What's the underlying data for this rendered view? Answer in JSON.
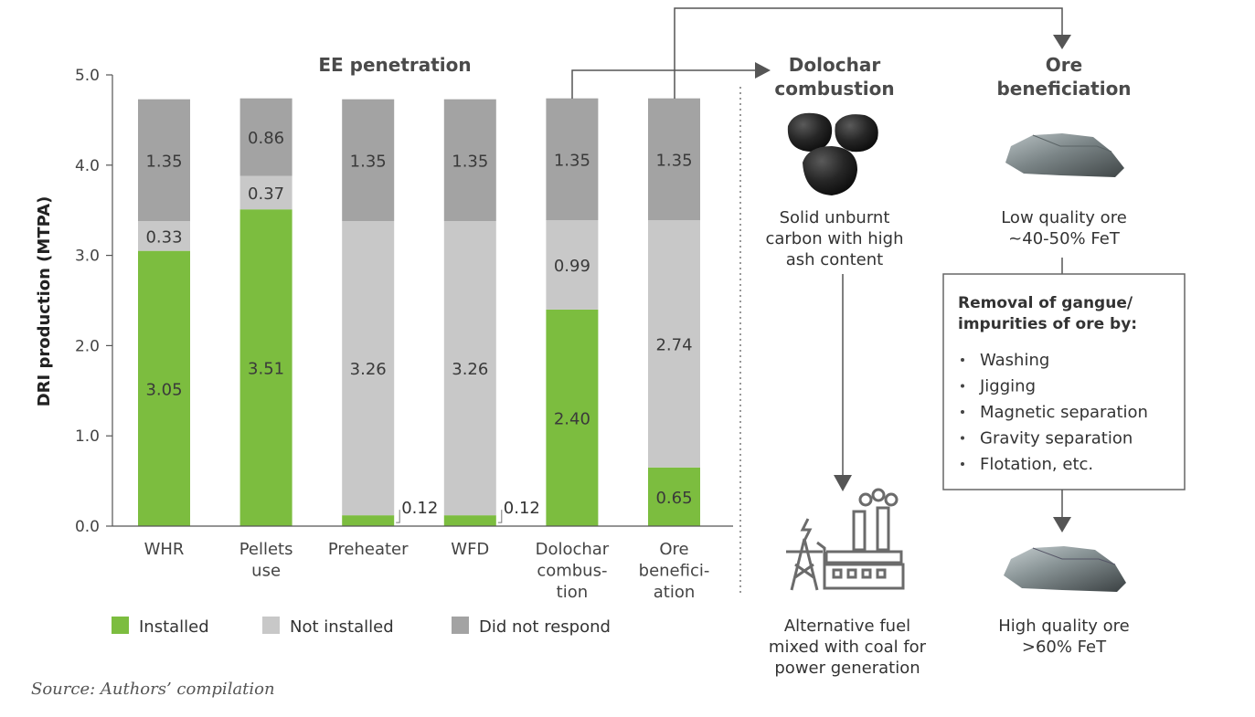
{
  "chart_data": {
    "type": "bar",
    "stacked": true,
    "title": "EE penetration",
    "ylabel": "DRI production (MTPA)",
    "xlabel": "",
    "ylim": [
      0,
      5
    ],
    "yticks": [
      "0.0",
      "1.0",
      "2.0",
      "3.0",
      "4.0",
      "5.0"
    ],
    "grid": false,
    "legend_position": "bottom",
    "categories": [
      [
        "WHR"
      ],
      [
        "Pellets",
        "use"
      ],
      [
        "Preheater"
      ],
      [
        "WFD"
      ],
      [
        "Dolochar",
        "combus-",
        "tion"
      ],
      [
        "Ore",
        "benefici-",
        "ation"
      ]
    ],
    "series": [
      {
        "name": "Installed",
        "color": "#7cbd3f",
        "values": [
          3.05,
          3.51,
          0.12,
          0.12,
          2.4,
          0.65
        ],
        "labels": [
          "3.05",
          "3.51",
          "0.12",
          "0.12",
          "2.40",
          "0.65"
        ]
      },
      {
        "name": "Not installed",
        "color": "#c8c8c8",
        "values": [
          0.33,
          0.37,
          3.26,
          3.26,
          0.99,
          2.74
        ],
        "labels": [
          "0.33",
          "0.37",
          "3.26",
          "3.26",
          "0.99",
          "2.74"
        ]
      },
      {
        "name": "Did not respond",
        "color": "#a3a3a3",
        "values": [
          1.35,
          0.86,
          1.35,
          1.35,
          1.35,
          1.35
        ],
        "labels": [
          "1.35",
          "0.86",
          "1.35",
          "1.35",
          "1.35",
          "1.35"
        ]
      }
    ]
  },
  "diagram": {
    "dolochar": {
      "title": [
        "Dolochar",
        "combustion"
      ],
      "description": [
        "Solid unburnt",
        "carbon with high",
        "ash content"
      ],
      "output": [
        "Alternative fuel",
        "mixed with coal for",
        "power generation"
      ]
    },
    "ore": {
      "title": [
        "Ore",
        "beneficiation"
      ],
      "input": [
        "Low quality ore",
        "~40-50% FeT"
      ],
      "process_heading": [
        "Removal of gangue/",
        "impurities of ore by:"
      ],
      "methods": [
        "Washing",
        "Jigging",
        "Magnetic separation",
        "Gravity separation",
        "Flotation, etc."
      ],
      "output": [
        "High quality ore",
        ">60% FeT"
      ]
    }
  },
  "source": "Source: Authors’ compilation"
}
